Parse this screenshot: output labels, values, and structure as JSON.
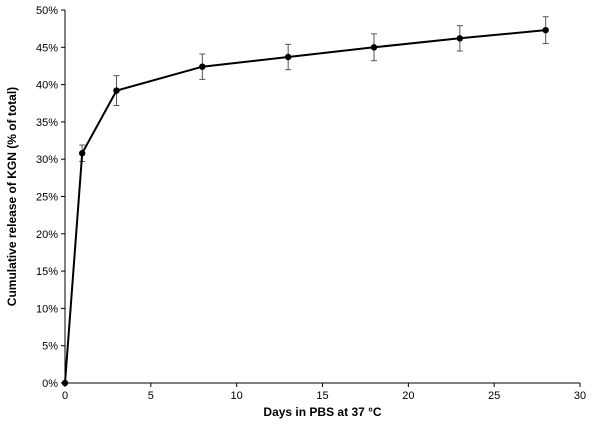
{
  "chart_data": {
    "type": "line",
    "title": "",
    "xlabel": "Days in PBS at 37 °C",
    "ylabel": "Cumulative release of KGN (% of total)",
    "xlim": [
      0,
      30
    ],
    "ylim": [
      0,
      50
    ],
    "x_ticks": [
      0,
      5,
      10,
      15,
      20,
      25,
      30
    ],
    "y_ticks": [
      0,
      5,
      10,
      15,
      20,
      25,
      30,
      35,
      40,
      45,
      50
    ],
    "y_tick_suffix": "%",
    "grid": false,
    "legend": "none",
    "series": [
      {
        "x": [
          0,
          1,
          3,
          8,
          13,
          18,
          23,
          28
        ],
        "y": [
          0,
          30.8,
          39.2,
          42.4,
          43.7,
          45.0,
          46.2,
          47.3
        ],
        "error": [
          0,
          1.1,
          2.0,
          1.7,
          1.7,
          1.8,
          1.7,
          1.8
        ],
        "color": "#000000"
      }
    ]
  }
}
